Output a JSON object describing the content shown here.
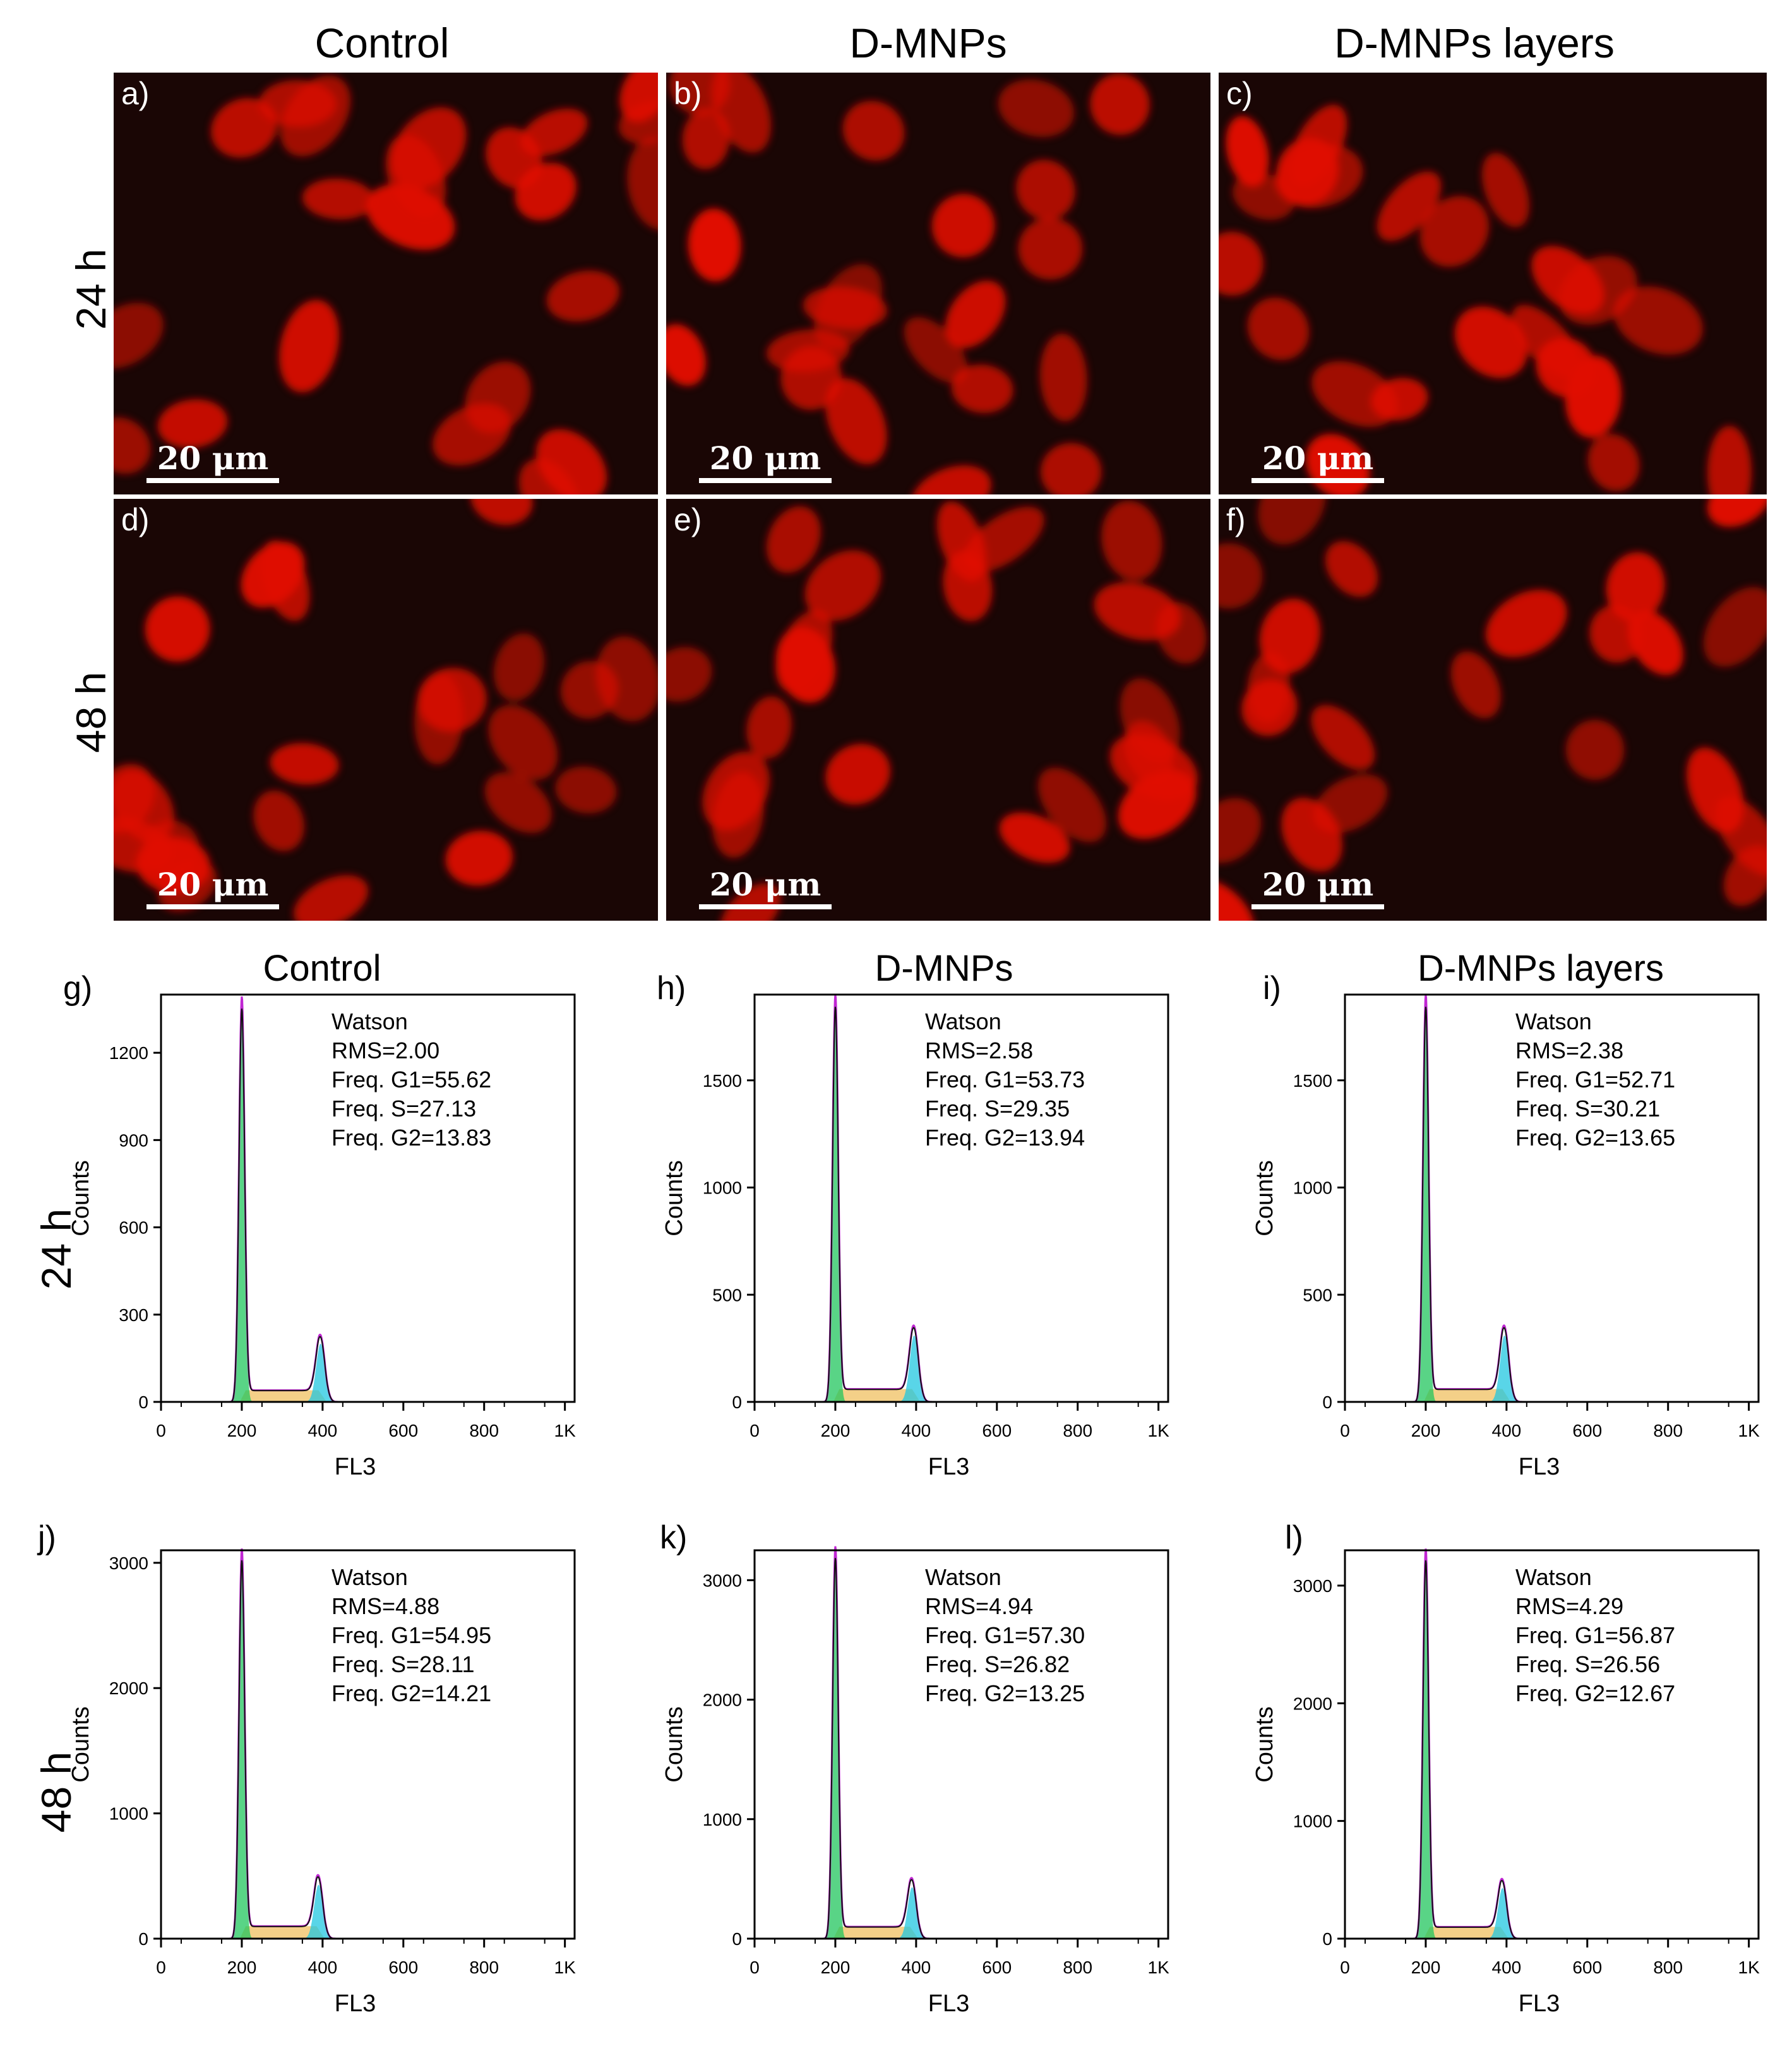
{
  "columns": [
    "Control",
    "D-MNPs",
    "D-MNPs layers"
  ],
  "rows": [
    "24 h",
    "48 h"
  ],
  "scale_bar": "20 μm",
  "micrograph_labels": [
    "a)",
    "b)",
    "c)",
    "d)",
    "e)",
    "f)"
  ],
  "colors": {
    "nucleus": "#e01000",
    "background": "#1a0605",
    "g1_fill": "#22c55e",
    "s_fill": "#f0c060",
    "g2_fill": "#22c7e0",
    "fit_line": "#c026d3"
  },
  "chart_data": [
    {
      "type": "area",
      "panel": "g)",
      "title": "Control",
      "xlabel": "FL3",
      "ylabel": "Counts",
      "xlim": [
        0,
        1024
      ],
      "ylim": [
        0,
        1400
      ],
      "yticks": [
        0,
        300,
        600,
        900,
        1200
      ],
      "xticks": [
        0,
        200,
        400,
        600,
        800,
        1000
      ],
      "xtick_labels": [
        "0",
        "200",
        "400",
        "600",
        "800",
        "1K"
      ],
      "g1_peak": {
        "x": 200,
        "y": 1380
      },
      "g2_peak": {
        "x": 395,
        "y": 200
      },
      "s_plateau": 40,
      "annotation": [
        "Watson",
        "RMS=2.00",
        "Freq. G1=55.62",
        "Freq. S=27.13",
        "Freq. G2=13.83"
      ]
    },
    {
      "type": "area",
      "panel": "h)",
      "title": "D-MNPs",
      "xlabel": "FL3",
      "ylabel": "Counts",
      "xlim": [
        0,
        1024
      ],
      "ylim": [
        0,
        1900
      ],
      "yticks": [
        0,
        500,
        1000,
        1500
      ],
      "xticks": [
        0,
        200,
        400,
        600,
        800,
        1000
      ],
      "xtick_labels": [
        "0",
        "200",
        "400",
        "600",
        "800",
        "1K"
      ],
      "g1_peak": {
        "x": 200,
        "y": 1880
      },
      "g2_peak": {
        "x": 395,
        "y": 310
      },
      "s_plateau": 60,
      "annotation": [
        "Watson",
        "RMS=2.58",
        "Freq. G1=53.73",
        "Freq. S=29.35",
        "Freq. G2=13.94"
      ]
    },
    {
      "type": "area",
      "panel": "i)",
      "title": "D-MNPs layers",
      "xlabel": "FL3",
      "ylabel": "Counts",
      "xlim": [
        0,
        1024
      ],
      "ylim": [
        0,
        1900
      ],
      "yticks": [
        0,
        500,
        1000,
        1500
      ],
      "xticks": [
        0,
        200,
        400,
        600,
        800,
        1000
      ],
      "xtick_labels": [
        "0",
        "200",
        "400",
        "600",
        "800",
        "1K"
      ],
      "g1_peak": {
        "x": 200,
        "y": 1880
      },
      "g2_peak": {
        "x": 395,
        "y": 310
      },
      "s_plateau": 60,
      "annotation": [
        "Watson",
        "RMS=2.38",
        "Freq. G1=52.71",
        "Freq. S=30.21",
        "Freq. G2=13.65"
      ]
    },
    {
      "type": "area",
      "panel": "j)",
      "xlabel": "FL3",
      "ylabel": "Counts",
      "xlim": [
        0,
        1024
      ],
      "ylim": [
        0,
        3100
      ],
      "yticks": [
        0,
        1000,
        2000,
        3000
      ],
      "xticks": [
        0,
        200,
        400,
        600,
        800,
        1000
      ],
      "xtick_labels": [
        "0",
        "200",
        "400",
        "600",
        "800",
        "1K"
      ],
      "g1_peak": {
        "x": 200,
        "y": 3080
      },
      "g2_peak": {
        "x": 390,
        "y": 430
      },
      "s_plateau": 100,
      "annotation": [
        "Watson",
        "RMS=4.88",
        "Freq. G1=54.95",
        "Freq. S=28.11",
        "Freq. G2=14.21"
      ]
    },
    {
      "type": "area",
      "panel": "k)",
      "xlabel": "FL3",
      "ylabel": "Counts",
      "xlim": [
        0,
        1024
      ],
      "ylim": [
        0,
        3250
      ],
      "yticks": [
        0,
        1000,
        2000,
        3000
      ],
      "xticks": [
        0,
        200,
        400,
        600,
        800,
        1000
      ],
      "xtick_labels": [
        "0",
        "200",
        "400",
        "600",
        "800",
        "1K"
      ],
      "g1_peak": {
        "x": 200,
        "y": 3250
      },
      "g2_peak": {
        "x": 390,
        "y": 430
      },
      "s_plateau": 100,
      "annotation": [
        "Watson",
        "RMS=4.94",
        "Freq. G1=57.30",
        "Freq. S=26.82",
        "Freq. G2=13.25"
      ]
    },
    {
      "type": "area",
      "panel": "l)",
      "xlabel": "FL3",
      "ylabel": "Counts",
      "xlim": [
        0,
        1024
      ],
      "ylim": [
        0,
        3300
      ],
      "yticks": [
        0,
        1000,
        2000,
        3000
      ],
      "xticks": [
        0,
        200,
        400,
        600,
        800,
        1000
      ],
      "xtick_labels": [
        "0",
        "200",
        "400",
        "600",
        "800",
        "1K"
      ],
      "g1_peak": {
        "x": 200,
        "y": 3280
      },
      "g2_peak": {
        "x": 390,
        "y": 430
      },
      "s_plateau": 100,
      "annotation": [
        "Watson",
        "RMS=4.29",
        "Freq. G1=56.87",
        "Freq. S=26.56",
        "Freq. G2=12.67"
      ]
    }
  ]
}
